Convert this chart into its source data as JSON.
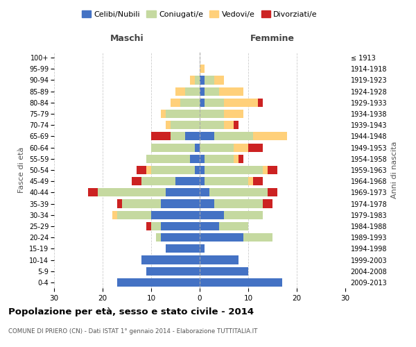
{
  "age_groups": [
    "0-4",
    "5-9",
    "10-14",
    "15-19",
    "20-24",
    "25-29",
    "30-34",
    "35-39",
    "40-44",
    "45-49",
    "50-54",
    "55-59",
    "60-64",
    "65-69",
    "70-74",
    "75-79",
    "80-84",
    "85-89",
    "90-94",
    "95-99",
    "100+"
  ],
  "birth_years": [
    "2009-2013",
    "2004-2008",
    "1999-2003",
    "1994-1998",
    "1989-1993",
    "1984-1988",
    "1979-1983",
    "1974-1978",
    "1969-1973",
    "1964-1968",
    "1959-1963",
    "1954-1958",
    "1949-1953",
    "1944-1948",
    "1939-1943",
    "1934-1938",
    "1929-1933",
    "1924-1928",
    "1919-1923",
    "1914-1918",
    "≤ 1913"
  ],
  "maschi": {
    "celibi": [
      17,
      11,
      12,
      7,
      8,
      8,
      10,
      8,
      7,
      5,
      1,
      2,
      1,
      3,
      0,
      0,
      0,
      0,
      0,
      0,
      0
    ],
    "coniugati": [
      0,
      0,
      0,
      0,
      1,
      2,
      7,
      8,
      14,
      7,
      9,
      9,
      9,
      3,
      6,
      7,
      4,
      3,
      1,
      0,
      0
    ],
    "vedovi": [
      0,
      0,
      0,
      0,
      0,
      0,
      1,
      0,
      0,
      0,
      1,
      0,
      0,
      0,
      1,
      1,
      2,
      2,
      1,
      0,
      0
    ],
    "divorziati": [
      0,
      0,
      0,
      0,
      0,
      1,
      0,
      1,
      2,
      2,
      2,
      0,
      0,
      4,
      0,
      0,
      0,
      0,
      0,
      0,
      0
    ]
  },
  "femmine": {
    "nubili": [
      17,
      10,
      8,
      1,
      9,
      4,
      5,
      3,
      2,
      1,
      1,
      1,
      0,
      3,
      0,
      0,
      1,
      1,
      1,
      0,
      0
    ],
    "coniugate": [
      0,
      0,
      0,
      0,
      6,
      6,
      8,
      10,
      12,
      9,
      12,
      6,
      7,
      8,
      5,
      5,
      4,
      3,
      2,
      0,
      0
    ],
    "vedove": [
      0,
      0,
      0,
      0,
      0,
      0,
      0,
      0,
      0,
      1,
      1,
      1,
      3,
      7,
      2,
      4,
      7,
      5,
      2,
      1,
      0
    ],
    "divorziate": [
      0,
      0,
      0,
      0,
      0,
      0,
      0,
      2,
      2,
      2,
      2,
      1,
      3,
      0,
      1,
      0,
      1,
      0,
      0,
      0,
      0
    ]
  },
  "colors": {
    "celibi": "#4472c4",
    "coniugati": "#c5d9a0",
    "vedovi": "#ffd07a",
    "divorziati": "#cc2222"
  },
  "xlim": 30,
  "title": "Popolazione per età, sesso e stato civile - 2014",
  "subtitle": "COMUNE DI PRIERO (CN) - Dati ISTAT 1° gennaio 2014 - Elaborazione TUTTITALIA.IT",
  "ylabel_left": "Fasce di età",
  "ylabel_right": "Anni di nascita",
  "xlabel_maschi": "Maschi",
  "xlabel_femmine": "Femmine",
  "legend_labels": [
    "Celibi/Nubili",
    "Coniugati/e",
    "Vedovi/e",
    "Divorziati/e"
  ]
}
